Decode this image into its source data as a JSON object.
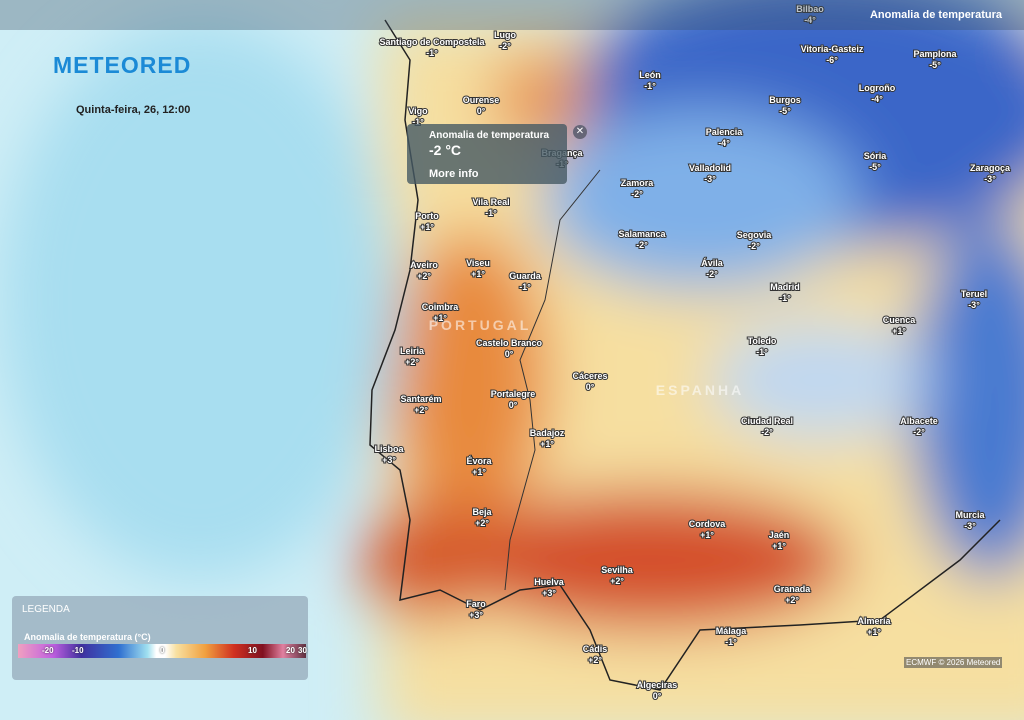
{
  "header": {
    "logo": "METEORED",
    "layer": "Anomalia de temperatura",
    "date": "Quinta-feira, 26, 12:00"
  },
  "popup": {
    "title": "Anomalia de temperatura",
    "value": "-2 °C",
    "link": "More info"
  },
  "countries": [
    "PORTUGAL",
    "ESPANHA"
  ],
  "cities": [
    {
      "name": "Santiago de Compostela",
      "anomaly": "-1°"
    },
    {
      "name": "Lugo",
      "anomaly": "-2°"
    },
    {
      "name": "Ourense",
      "anomaly": "0°"
    },
    {
      "name": "Vigo",
      "anomaly": "-1°"
    },
    {
      "name": "León",
      "anomaly": "-1°"
    },
    {
      "name": "Burgos",
      "anomaly": "-5°"
    },
    {
      "name": "Vitoria-Gasteiz",
      "anomaly": "-6°"
    },
    {
      "name": "Pamplona",
      "anomaly": "-5°"
    },
    {
      "name": "Logroño",
      "anomaly": "-4°"
    },
    {
      "name": "Bilbao",
      "anomaly": "-4°"
    },
    {
      "name": "Palencia",
      "anomaly": "-4°"
    },
    {
      "name": "Sória",
      "anomaly": "-5°"
    },
    {
      "name": "Valladolid",
      "anomaly": "-3°"
    },
    {
      "name": "Zaragoça",
      "anomaly": "-3°"
    },
    {
      "name": "Bragança",
      "anomaly": "-1°"
    },
    {
      "name": "Zamora",
      "anomaly": "-2°"
    },
    {
      "name": "Vila Real",
      "anomaly": "-1°"
    },
    {
      "name": "Porto",
      "anomaly": "+1°"
    },
    {
      "name": "Salamanca",
      "anomaly": "-2°"
    },
    {
      "name": "Segovia",
      "anomaly": "-2°"
    },
    {
      "name": "Ávila",
      "anomaly": "-2°"
    },
    {
      "name": "Viseu",
      "anomaly": "+1°"
    },
    {
      "name": "Guarda",
      "anomaly": "-1°"
    },
    {
      "name": "Aveiro",
      "anomaly": "+2°"
    },
    {
      "name": "Teruel",
      "anomaly": "-3°"
    },
    {
      "name": "Madrid",
      "anomaly": "-1°"
    },
    {
      "name": "Coimbra",
      "anomaly": "+1°"
    },
    {
      "name": "Cuenca",
      "anomaly": "+1°"
    },
    {
      "name": "Castelo Branco",
      "anomaly": "0°"
    },
    {
      "name": "Toledo",
      "anomaly": "-1°"
    },
    {
      "name": "Leiria",
      "anomaly": "+2°"
    },
    {
      "name": "Cáceres",
      "anomaly": "0°"
    },
    {
      "name": "Portalegre",
      "anomaly": "0°"
    },
    {
      "name": "Santarém",
      "anomaly": "+2°"
    },
    {
      "name": "Badajoz",
      "anomaly": "+1°"
    },
    {
      "name": "Ciudad Real",
      "anomaly": "-2°"
    },
    {
      "name": "Albacete",
      "anomaly": "-2°"
    },
    {
      "name": "Lisboa",
      "anomaly": "+3°"
    },
    {
      "name": "Évora",
      "anomaly": "+1°"
    },
    {
      "name": "Beja",
      "anomaly": "+2°"
    },
    {
      "name": "Cordova",
      "anomaly": "+1°"
    },
    {
      "name": "Jaén",
      "anomaly": "+1°"
    },
    {
      "name": "Murcia",
      "anomaly": "-3°"
    },
    {
      "name": "Sevilha",
      "anomaly": "+2°"
    },
    {
      "name": "Huelva",
      "anomaly": "+3°"
    },
    {
      "name": "Granada",
      "anomaly": "+2°"
    },
    {
      "name": "Faro",
      "anomaly": "+3°"
    },
    {
      "name": "Almería",
      "anomaly": "+1°"
    },
    {
      "name": "Málaga",
      "anomaly": "-1°"
    },
    {
      "name": "Cádis",
      "anomaly": "+2°"
    },
    {
      "name": "Algeciras",
      "anomaly": "0°"
    }
  ],
  "legend": {
    "title": "LEGENDA",
    "subtitle": "Anomalia de temperatura (°C)",
    "ticks": [
      "-20",
      "-10",
      "0",
      "10",
      "20",
      "30"
    ]
  },
  "credit": "ECMWF © 2026 Meteored"
}
